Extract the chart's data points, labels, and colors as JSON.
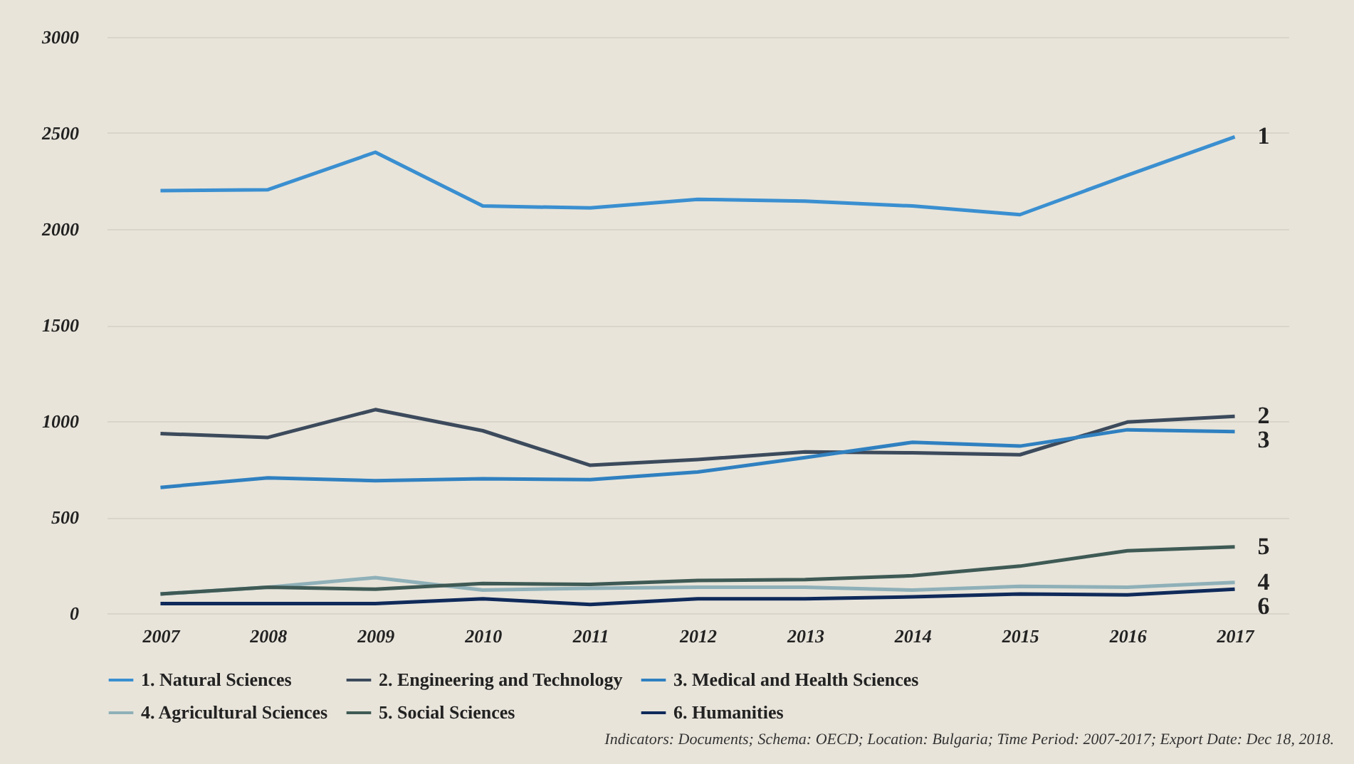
{
  "chart_data": {
    "type": "line",
    "categories": [
      "2007",
      "2008",
      "2009",
      "2010",
      "2011",
      "2012",
      "2013",
      "2014",
      "2015",
      "2016",
      "2017"
    ],
    "series": [
      {
        "name": "1. Natural Sciences",
        "color": "#3a8fd0",
        "values": [
          2200,
          2205,
          2400,
          2120,
          2110,
          2155,
          2145,
          2120,
          2075,
          2280,
          2480
        ]
      },
      {
        "name": "2. Engineering and Technology",
        "color": "#3c4a5c",
        "values": [
          935,
          915,
          1060,
          950,
          770,
          800,
          840,
          835,
          825,
          995,
          1025
        ]
      },
      {
        "name": "3. Medical and Health Sciences",
        "color": "#2f80c0",
        "values": [
          655,
          705,
          690,
          700,
          695,
          735,
          810,
          890,
          870,
          955,
          945
        ]
      },
      {
        "name": "4. Agricultural Sciences",
        "color": "#8fb0b8",
        "values": [
          100,
          135,
          185,
          120,
          130,
          135,
          135,
          120,
          140,
          135,
          160
        ]
      },
      {
        "name": "5. Social Sciences",
        "color": "#3f5a55",
        "values": [
          100,
          135,
          125,
          155,
          150,
          170,
          175,
          195,
          245,
          325,
          345
        ]
      },
      {
        "name": "6. Humanities",
        "color": "#0f2a5a",
        "values": [
          50,
          50,
          50,
          75,
          45,
          75,
          75,
          85,
          100,
          95,
          125
        ]
      }
    ],
    "ylim": [
      0,
      3000
    ],
    "yticks": [
      0,
      500,
      1000,
      1500,
      2000,
      2500,
      3000
    ],
    "grid": "y",
    "legend": "bottom",
    "marker": "none",
    "line_style": "solid",
    "annotations": [
      {
        "text": "1",
        "x": "2017",
        "y": 2480
      },
      {
        "text": "2",
        "x": "2017",
        "y": 1025
      },
      {
        "text": "3",
        "x": "2017",
        "y": 945
      },
      {
        "text": "5",
        "x": "2017",
        "y": 345
      },
      {
        "text": "4",
        "x": "2017",
        "y": 160
      },
      {
        "text": "6",
        "x": "2017",
        "y": 125
      },
      "Indicators: Documents; Schema: OECD; Location: Bulgaria; Time Period: 2007-2017; Export Date: Dec 18, 2018."
    ]
  }
}
